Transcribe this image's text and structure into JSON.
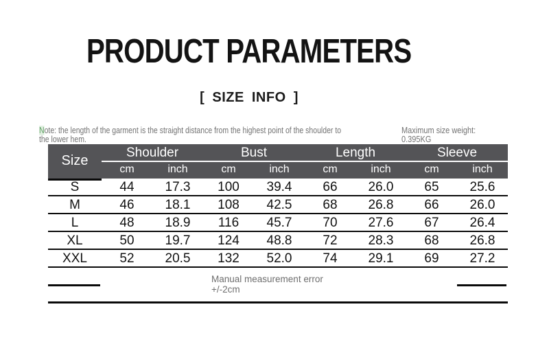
{
  "header": {
    "title": "PRODUCT PARAMETERS",
    "subtitle": "[ SIZE INFO ]"
  },
  "notes": {
    "note_first_char": "N",
    "note_line1_rest": "ote: the length of the garment is the straight distance from the highest point of the shoulder to",
    "note_line2": "the lower hem.",
    "max_weight_label": "Maximum size weight:",
    "max_weight_value": "0.395KG"
  },
  "size_table": {
    "corner_label": "Size",
    "column_groups": [
      {
        "label": "Shoulder"
      },
      {
        "label": "Bust"
      },
      {
        "label": "Length"
      },
      {
        "label": "Sleeve"
      }
    ],
    "unit_headers": [
      "cm",
      "inch",
      "cm",
      "inch",
      "cm",
      "inch",
      "cm",
      "inch"
    ],
    "rows": [
      {
        "size": "S",
        "cells": [
          "44",
          "17.3",
          "100",
          "39.4",
          "66",
          "26.0",
          "65",
          "25.6"
        ]
      },
      {
        "size": "M",
        "cells": [
          "46",
          "18.1",
          "108",
          "42.5",
          "68",
          "26.8",
          "66",
          "26.0"
        ]
      },
      {
        "size": "L",
        "cells": [
          "48",
          "18.9",
          "116",
          "45.7",
          "70",
          "27.6",
          "67",
          "26.4"
        ]
      },
      {
        "size": "XL",
        "cells": [
          "50",
          "19.7",
          "124",
          "48.8",
          "72",
          "28.3",
          "68",
          "26.8"
        ]
      },
      {
        "size": "XXL",
        "cells": [
          "52",
          "20.5",
          "132",
          "52.0",
          "74",
          "29.1",
          "69",
          "27.2"
        ]
      }
    ]
  },
  "footer": {
    "line1": "Manual measurement error",
    "line2": "+/-2cm"
  },
  "colors": {
    "header_band": "#545457",
    "grid_line": "#0a0a0a",
    "muted_text": "#6e6e6e",
    "note_green": "#5f9e63"
  }
}
